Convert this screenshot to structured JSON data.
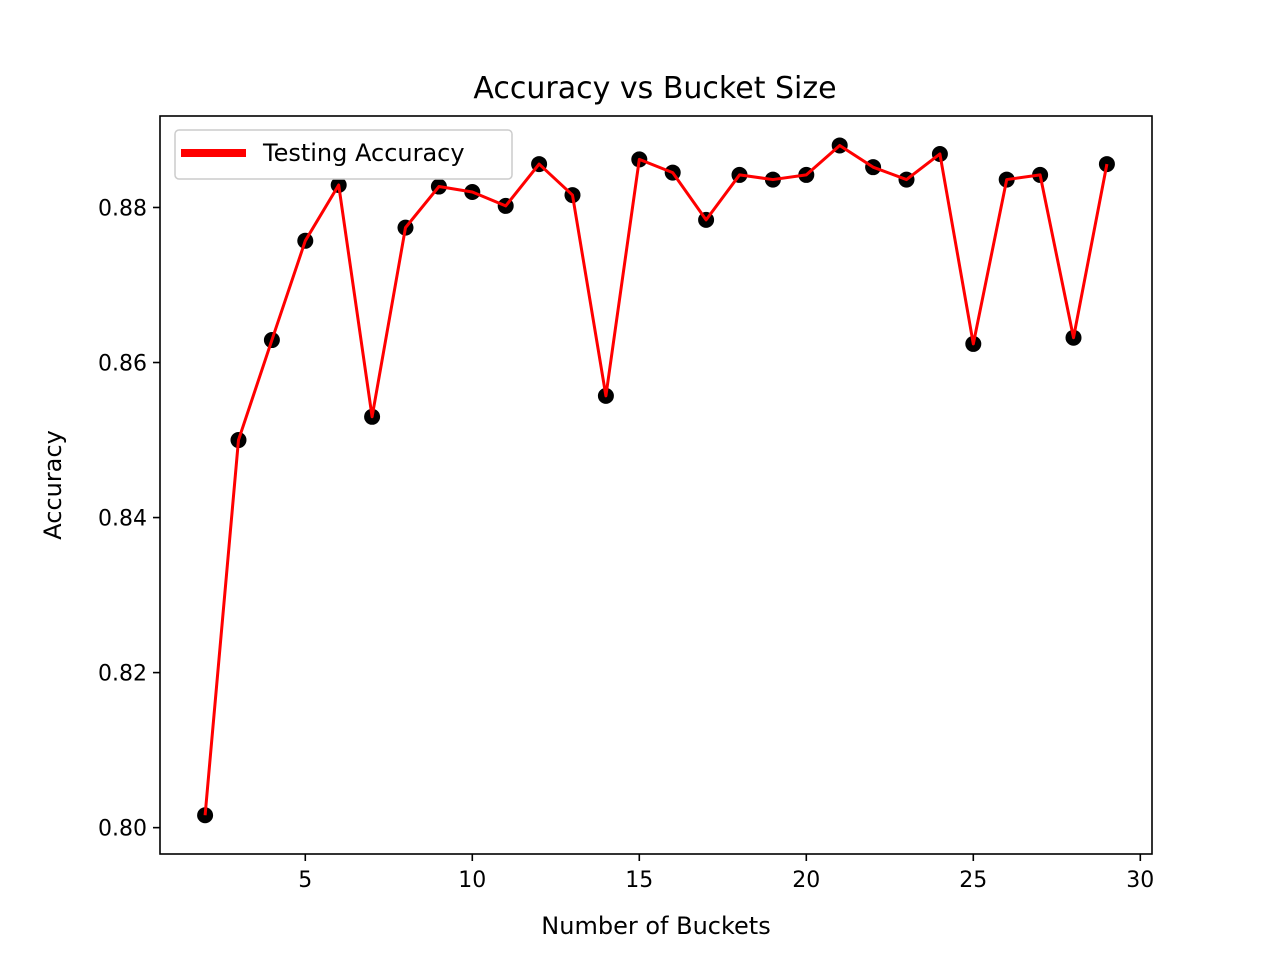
{
  "chart_data": {
    "type": "line",
    "title": "Accuracy vs Bucket Size",
    "xlabel": "Number of Buckets",
    "ylabel": "Accuracy",
    "xlim": [
      0.65,
      30.35
    ],
    "ylim": [
      0.7966,
      0.8918
    ],
    "xticks": [
      5,
      10,
      15,
      20,
      25,
      30
    ],
    "xtick_labels": [
      "5",
      "10",
      "15",
      "20",
      "25",
      "30"
    ],
    "yticks": [
      0.8,
      0.82,
      0.84,
      0.86,
      0.88
    ],
    "ytick_labels": [
      "0.80",
      "0.82",
      "0.84",
      "0.86",
      "0.88"
    ],
    "grid": false,
    "legend": {
      "position": "upper-left"
    },
    "series": [
      {
        "name": "Testing Accuracy",
        "line_color": "#ff0000",
        "marker_color": "#000000",
        "x": [
          2,
          3,
          4,
          5,
          6,
          7,
          8,
          9,
          10,
          11,
          12,
          13,
          14,
          15,
          16,
          17,
          18,
          19,
          20,
          21,
          22,
          23,
          24,
          25,
          26,
          27,
          28,
          29
        ],
        "y": [
          0.8016,
          0.85,
          0.8629,
          0.8757,
          0.8829,
          0.853,
          0.8774,
          0.8827,
          0.882,
          0.8802,
          0.8856,
          0.8816,
          0.8557,
          0.8862,
          0.8845,
          0.8784,
          0.8842,
          0.8836,
          0.8842,
          0.888,
          0.8852,
          0.8836,
          0.8869,
          0.8624,
          0.8836,
          0.8842,
          0.8632,
          0.8856
        ]
      }
    ]
  }
}
